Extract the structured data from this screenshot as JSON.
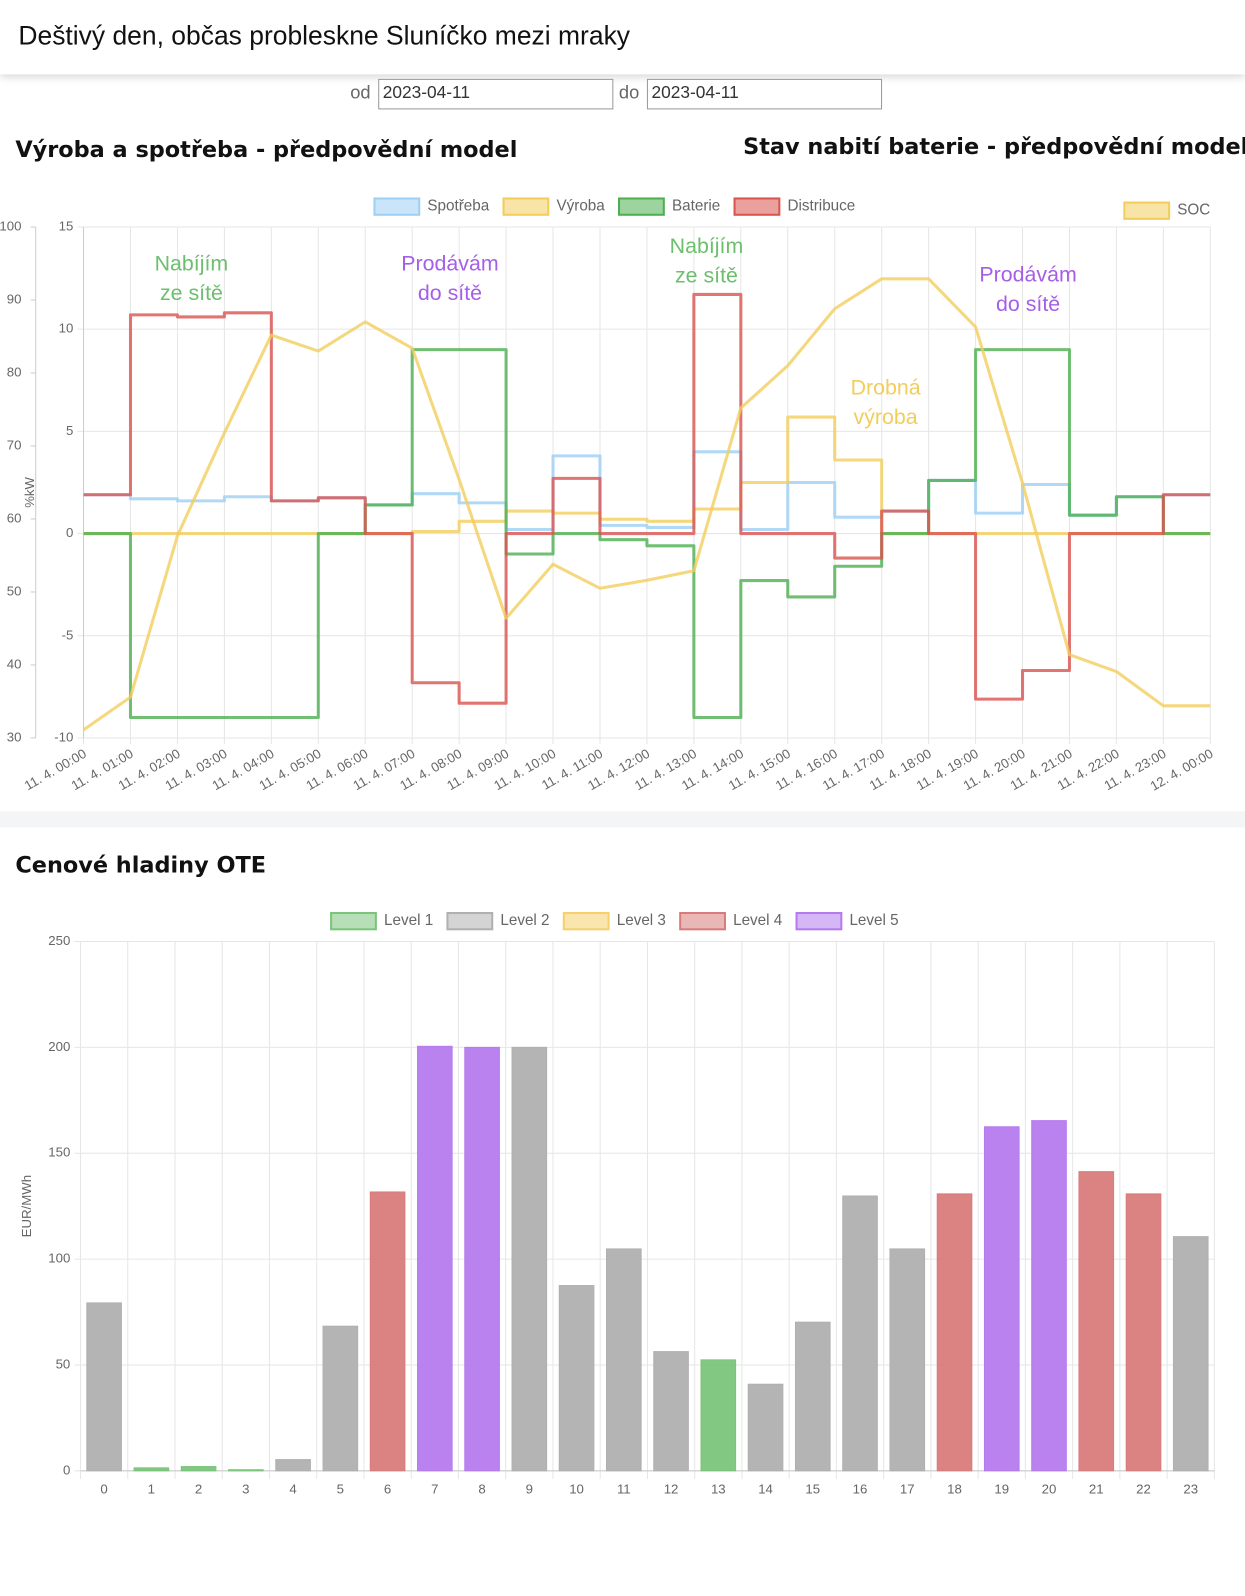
{
  "header": {
    "title": "Deštivý den, občas probleskne Sluníčko mezi mraky"
  },
  "filters": {
    "from": {
      "label": "od",
      "value": "2023-04-11"
    },
    "to": {
      "label": "do",
      "value": "2023-04-11"
    }
  },
  "chart_data": [
    {
      "type": "line",
      "stepped": true,
      "title": "Výroba a spotřeba - předpovědní model",
      "ylabel": "kW",
      "categories": [
        "11. 4. 00:00",
        "11. 4. 01:00",
        "11. 4. 02:00",
        "11. 4. 03:00",
        "11. 4. 04:00",
        "11. 4. 05:00",
        "11. 4. 06:00",
        "11. 4. 07:00",
        "11. 4. 08:00",
        "11. 4. 09:00",
        "11. 4. 10:00",
        "11. 4. 11:00",
        "11. 4. 12:00",
        "11. 4. 13:00",
        "11. 4. 14:00",
        "11. 4. 15:00",
        "11. 4. 16:00",
        "11. 4. 17:00",
        "11. 4. 18:00",
        "11. 4. 19:00",
        "11. 4. 20:00",
        "11. 4. 21:00",
        "11. 4. 22:00",
        "11. 4. 23:00",
        "12. 4. 00:00"
      ],
      "ylim": [
        -10,
        15
      ],
      "yticks": [
        -10,
        -5,
        0,
        5,
        10,
        15
      ],
      "grid": true,
      "legend": "top",
      "series": [
        {
          "name": "Spotřeba",
          "color": "#9ecff5",
          "values": [
            1.9,
            1.7,
            1.6,
            1.8,
            1.6,
            1.75,
            1.4,
            1.95,
            1.5,
            0.2,
            3.8,
            0.4,
            0.3,
            4.0,
            0.2,
            2.5,
            0.8,
            1.1,
            2.6,
            1.0,
            2.4,
            0.9,
            1.8,
            1.9,
            1.9
          ]
        },
        {
          "name": "Výroba",
          "color": "#f2cd5c",
          "values": [
            0,
            0,
            0,
            0,
            0,
            0,
            0,
            0.1,
            0.6,
            1.1,
            1.0,
            0.7,
            0.6,
            1.2,
            2.5,
            5.7,
            3.6,
            0,
            0,
            0,
            0,
            0,
            0,
            0,
            0
          ]
        },
        {
          "name": "Baterie",
          "color": "#4caf50",
          "values": [
            0,
            -9,
            -9,
            -9,
            -9,
            0,
            1.4,
            9,
            9,
            -1,
            0,
            -0.3,
            -0.6,
            -9,
            -2.3,
            -3.1,
            -1.6,
            0,
            2.6,
            9,
            9,
            0.9,
            1.8,
            0,
            0
          ]
        },
        {
          "name": "Distribuce",
          "color": "#d9534f",
          "values": [
            1.9,
            10.7,
            10.6,
            10.8,
            1.6,
            1.75,
            0,
            -7.3,
            -8.3,
            0,
            2.7,
            0,
            0,
            11.7,
            0,
            0,
            -1.2,
            1.1,
            0,
            -8.1,
            -6.7,
            0,
            0,
            1.9,
            1.9
          ]
        }
      ],
      "annotations": [
        {
          "lines": [
            "Nabíjím",
            "ze sítě"
          ],
          "color": "#6cbf6c"
        },
        {
          "lines": [
            "Prodávám",
            "do sítě"
          ],
          "color": "#a55ee8"
        },
        {
          "lines": [
            "Nabíjím",
            "ze sítě"
          ],
          "color": "#6cbf6c"
        },
        {
          "lines": [
            "Drobná",
            "výroba"
          ],
          "color": "#f2cd5c"
        },
        {
          "lines": [
            "Prodávám",
            "do sítě"
          ],
          "color": "#a55ee8"
        }
      ]
    },
    {
      "type": "line",
      "title": "Stav nabití baterie - předpovědní model",
      "ylabel": "%",
      "ylim": [
        30,
        100
      ],
      "yticks": [
        30,
        40,
        50,
        60,
        70,
        80,
        90,
        100
      ],
      "legend": "top-right",
      "series": [
        {
          "name": "SOC",
          "color": "#f2cd5c",
          "values": [
            31.1,
            35.6,
            57.7,
            71.8,
            85.2,
            83.0,
            87.0,
            83.4,
            65.4,
            46.4,
            53.8,
            50.5,
            51.6,
            52.9,
            75.2,
            81.0,
            88.8,
            92.9,
            92.9,
            86.3,
            64.9,
            41.4,
            39.1,
            34.4,
            34.4
          ]
        }
      ]
    },
    {
      "type": "bar",
      "title": "Cenové hladiny OTE",
      "ylabel": "EUR/MWh",
      "categories": [
        "0",
        "1",
        "2",
        "3",
        "4",
        "5",
        "6",
        "7",
        "8",
        "9",
        "10",
        "11",
        "12",
        "13",
        "14",
        "15",
        "16",
        "17",
        "18",
        "19",
        "20",
        "21",
        "22",
        "23"
      ],
      "ylim": [
        0,
        250
      ],
      "yticks": [
        0,
        50,
        100,
        150,
        200,
        250
      ],
      "grid": true,
      "legend": "top",
      "series": [
        {
          "name": "Level 1",
          "color": "#7bc47b",
          "values": [
            null,
            1.4,
            2,
            0.5,
            null,
            null,
            null,
            null,
            null,
            null,
            null,
            null,
            null,
            52.4,
            null,
            null,
            null,
            null,
            null,
            null,
            null,
            null,
            null,
            null
          ]
        },
        {
          "name": "Level 2",
          "color": "#b0b0b0",
          "values": [
            79.3,
            null,
            null,
            null,
            5.3,
            68.3,
            null,
            null,
            null,
            200,
            87.5,
            104.8,
            56.3,
            null,
            40.9,
            70.2,
            129.8,
            104.8,
            null,
            null,
            null,
            null,
            null,
            110.6
          ]
        },
        {
          "name": "Level 3",
          "color": "#f5d06b",
          "values": [
            null,
            null,
            null,
            null,
            null,
            null,
            null,
            null,
            null,
            null,
            null,
            null,
            null,
            null,
            null,
            null,
            null,
            null,
            null,
            null,
            null,
            null,
            null,
            null
          ]
        },
        {
          "name": "Level 4",
          "color": "#d97b7b",
          "values": [
            null,
            null,
            null,
            null,
            null,
            null,
            131.7,
            null,
            null,
            null,
            null,
            null,
            null,
            null,
            null,
            null,
            null,
            null,
            130.8,
            null,
            null,
            141.3,
            130.8,
            null
          ]
        },
        {
          "name": "Level 5",
          "color": "#b57bee",
          "values": [
            null,
            null,
            null,
            null,
            null,
            null,
            null,
            200.5,
            200,
            null,
            null,
            null,
            null,
            null,
            null,
            null,
            null,
            null,
            null,
            162.5,
            165.4,
            null,
            null,
            null
          ]
        }
      ]
    }
  ]
}
